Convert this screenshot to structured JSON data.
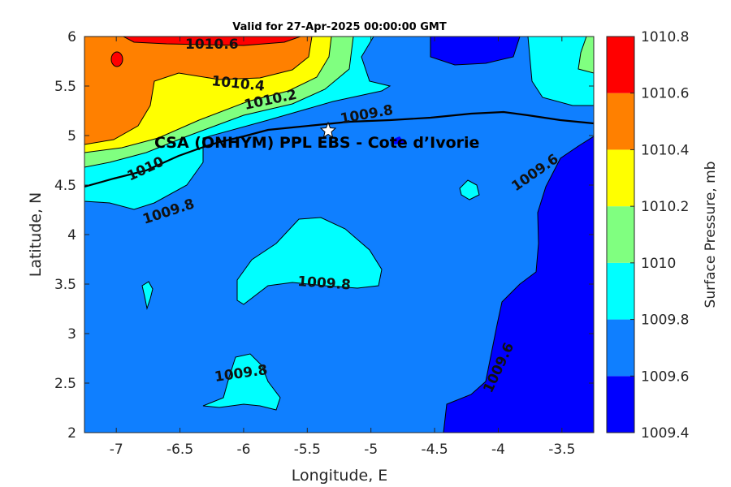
{
  "chart_data": {
    "type": "contour",
    "title": "Valid for 27-Apr-2025 00:00:00 GMT",
    "xlabel": "Longitude, E",
    "ylabel": "Latitude, N",
    "xlim": [
      -7.25,
      -3.25
    ],
    "ylim": [
      2,
      6
    ],
    "xticks": [
      "-7",
      "-6.5",
      "-6",
      "-5.5",
      "-5",
      "-4.5",
      "-4",
      "-3.5"
    ],
    "xtick_values": [
      -7,
      -6.5,
      -6,
      -5.5,
      -5,
      -4.5,
      -4,
      -3.5
    ],
    "yticks": [
      "2",
      "2.5",
      "3",
      "3.5",
      "4",
      "4.5",
      "5",
      "5.5",
      "6"
    ],
    "ytick_values": [
      2,
      2.5,
      3,
      3.5,
      4,
      4.5,
      5,
      5.5,
      6
    ],
    "colorbar": {
      "label": "Surface Pressure, mb",
      "levels": [
        1009.4,
        1009.6,
        1009.8,
        1010,
        1010.2,
        1010.4,
        1010.6,
        1010.8
      ],
      "tick_labels": [
        "1009.4",
        "1009.6",
        "1009.8",
        "1010",
        "1010.2",
        "1010.4",
        "1010.6",
        "1010.8"
      ],
      "colors": [
        "#0000ff",
        "#0f7fff",
        "#00ffff",
        "#80ff80",
        "#ffff00",
        "#ff8000",
        "#ff0000",
        "#800000"
      ]
    },
    "contour_labels": [
      "1010.6",
      "1010.4",
      "1010.2",
      "1009.8",
      "1010",
      "1009.8",
      "1009.6",
      "1009.8",
      "1009.6",
      "1009.8"
    ],
    "annotation": "CSA (ONHYM) PPL EBS  - Cote d’Ivorie",
    "marker": {
      "symbol": "star",
      "lon": -5.33,
      "lat": 5.05
    }
  }
}
